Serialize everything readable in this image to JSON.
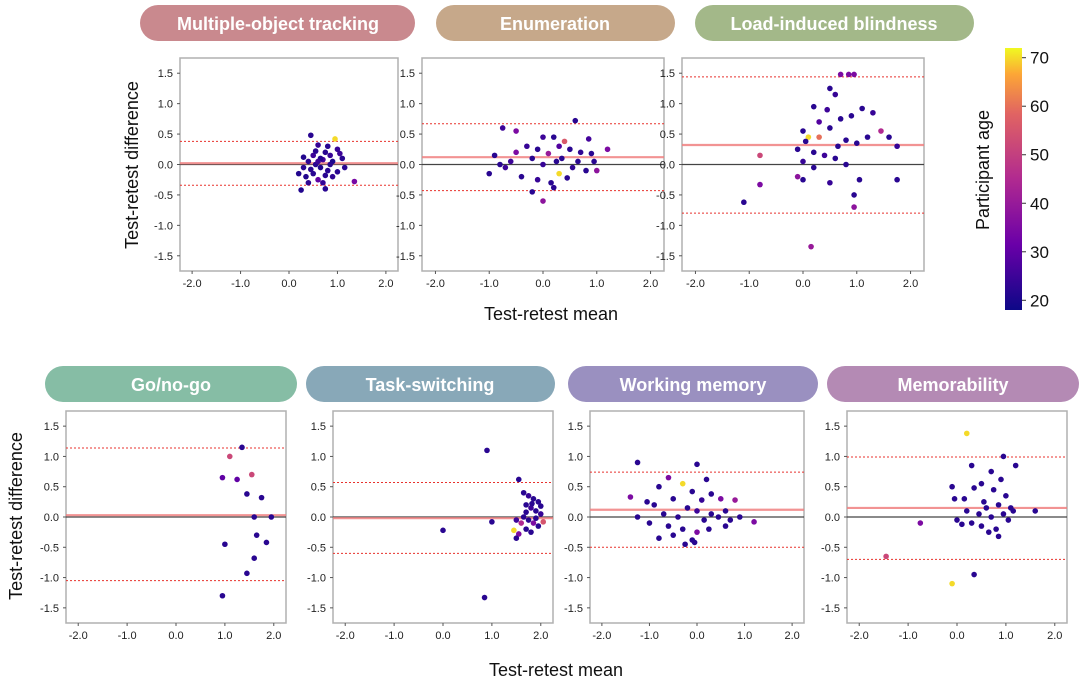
{
  "figure": {
    "row1_xlabel": "Test-retest mean",
    "row2_xlabel": "Test-retest mean",
    "ylabel": "Test-retest difference",
    "colorbar": {
      "label": "Participant age",
      "min": 18,
      "max": 72,
      "ticks": [
        "20",
        "30",
        "40",
        "50",
        "60",
        "70"
      ],
      "tick_values": [
        20,
        30,
        40,
        50,
        60,
        70
      ]
    }
  },
  "chart_data": [
    {
      "type": "scatter",
      "title": "Multiple-object tracking",
      "title_color": "#c9898e",
      "xlim": [
        -2.25,
        2.25
      ],
      "ylim": [
        -1.75,
        1.75
      ],
      "xticks": [
        "-2.0",
        "-1.0",
        "0.0",
        "1.0",
        "2.0"
      ],
      "yticks": [
        "1.5",
        "1.0",
        "0.5",
        "0.0",
        "-0.5",
        "-1.0",
        "-1.5"
      ],
      "mean_diff": 0.02,
      "loa_upper": 0.38,
      "loa_lower": -0.34,
      "points": [
        [
          0.45,
          0.48,
          22
        ],
        [
          0.6,
          0.32,
          24
        ],
        [
          0.95,
          0.42,
          70
        ],
        [
          0.75,
          0.2,
          22
        ],
        [
          0.5,
          0.15,
          25
        ],
        [
          0.3,
          0.12,
          21
        ],
        [
          0.4,
          0.05,
          23
        ],
        [
          0.55,
          0.0,
          22
        ],
        [
          0.65,
          -0.05,
          21
        ],
        [
          0.7,
          0.08,
          26
        ],
        [
          0.8,
          -0.1,
          22
        ],
        [
          0.85,
          0.15,
          24
        ],
        [
          0.9,
          0.05,
          20
        ],
        [
          1.0,
          -0.12,
          22
        ],
        [
          1.05,
          0.18,
          25
        ],
        [
          0.35,
          -0.2,
          21
        ],
        [
          0.5,
          -0.15,
          22
        ],
        [
          0.6,
          -0.25,
          30
        ],
        [
          0.7,
          -0.3,
          24
        ],
        [
          0.75,
          -0.4,
          22
        ],
        [
          0.25,
          -0.42,
          21
        ],
        [
          0.4,
          -0.3,
          23
        ],
        [
          1.1,
          0.1,
          22
        ],
        [
          1.0,
          0.25,
          24
        ],
        [
          1.35,
          -0.28,
          34
        ],
        [
          0.85,
          0.0,
          22
        ],
        [
          0.55,
          0.22,
          22
        ],
        [
          0.65,
          0.1,
          21
        ],
        [
          0.9,
          -0.2,
          23
        ],
        [
          0.3,
          -0.05,
          22
        ],
        [
          0.45,
          -0.08,
          22
        ],
        [
          0.6,
          0.05,
          25
        ],
        [
          0.75,
          -0.18,
          22
        ],
        [
          0.2,
          -0.15,
          21
        ],
        [
          1.15,
          -0.05,
          22
        ],
        [
          0.8,
          0.3,
          22
        ]
      ]
    },
    {
      "type": "scatter",
      "title": "Enumeration",
      "title_color": "#c6a88a",
      "xlim": [
        -2.25,
        2.25
      ],
      "ylim": [
        -1.75,
        1.75
      ],
      "xticks": [
        "-2.0",
        "-1.0",
        "0.0",
        "1.0",
        "2.0"
      ],
      "yticks": [
        "1.5",
        "1.0",
        "0.5",
        "0.0",
        "-0.5",
        "-1.0",
        "-1.5"
      ],
      "mean_diff": 0.12,
      "loa_upper": 0.67,
      "loa_lower": -0.43,
      "points": [
        [
          -0.75,
          0.6,
          25
        ],
        [
          -0.5,
          0.55,
          35
        ],
        [
          0.6,
          0.72,
          22
        ],
        [
          0.0,
          0.45,
          25
        ],
        [
          0.2,
          0.45,
          22
        ],
        [
          0.4,
          0.38,
          56
        ],
        [
          0.85,
          0.42,
          26
        ],
        [
          -0.3,
          0.3,
          24
        ],
        [
          -0.1,
          0.25,
          22
        ],
        [
          0.1,
          0.18,
          40
        ],
        [
          0.3,
          0.3,
          28
        ],
        [
          0.5,
          0.25,
          22
        ],
        [
          0.7,
          0.2,
          23
        ],
        [
          0.9,
          0.18,
          22
        ],
        [
          1.2,
          0.25,
          35
        ],
        [
          -0.9,
          0.15,
          22
        ],
        [
          -0.6,
          0.05,
          25
        ],
        [
          -0.2,
          0.1,
          22
        ],
        [
          0.0,
          0.0,
          24
        ],
        [
          0.25,
          0.05,
          22
        ],
        [
          0.55,
          -0.05,
          23
        ],
        [
          0.8,
          -0.1,
          22
        ],
        [
          1.0,
          -0.1,
          38
        ],
        [
          -1.0,
          -0.15,
          22
        ],
        [
          -0.7,
          -0.05,
          25
        ],
        [
          -0.4,
          -0.2,
          22
        ],
        [
          -0.1,
          -0.25,
          24
        ],
        [
          0.15,
          -0.3,
          22
        ],
        [
          0.3,
          -0.15,
          70
        ],
        [
          0.45,
          -0.22,
          22
        ],
        [
          -0.2,
          -0.45,
          22
        ],
        [
          0.0,
          -0.6,
          38
        ],
        [
          0.2,
          -0.38,
          22
        ],
        [
          -0.5,
          0.2,
          35
        ],
        [
          0.65,
          0.05,
          22
        ],
        [
          0.95,
          0.05,
          22
        ],
        [
          -0.8,
          0.0,
          22
        ],
        [
          0.35,
          0.1,
          22
        ]
      ]
    },
    {
      "type": "scatter",
      "title": "Load-induced blindness",
      "title_color": "#a3b889",
      "xlim": [
        -2.25,
        2.25
      ],
      "ylim": [
        -1.75,
        1.75
      ],
      "xticks": [
        "-2.0",
        "-1.0",
        "0.0",
        "1.0",
        "2.0"
      ],
      "yticks": [
        "1.5",
        "1.0",
        "0.5",
        "0.0",
        "-0.5",
        "-1.0",
        "-1.5"
      ],
      "mean_diff": 0.32,
      "loa_upper": 1.44,
      "loa_lower": -0.8,
      "points": [
        [
          0.7,
          1.48,
          35
        ],
        [
          0.85,
          1.48,
          35
        ],
        [
          0.95,
          1.48,
          35
        ],
        [
          0.5,
          1.25,
          22
        ],
        [
          0.6,
          1.15,
          24
        ],
        [
          0.2,
          0.95,
          22
        ],
        [
          0.45,
          0.9,
          25
        ],
        [
          1.1,
          0.92,
          22
        ],
        [
          1.3,
          0.85,
          24
        ],
        [
          0.9,
          0.8,
          22
        ],
        [
          0.3,
          0.7,
          28
        ],
        [
          0.7,
          0.75,
          22
        ],
        [
          0.0,
          0.55,
          22
        ],
        [
          0.5,
          0.6,
          22
        ],
        [
          1.45,
          0.55,
          45
        ],
        [
          0.1,
          0.45,
          70
        ],
        [
          0.3,
          0.45,
          60
        ],
        [
          0.8,
          0.4,
          22
        ],
        [
          1.0,
          0.35,
          22
        ],
        [
          1.2,
          0.45,
          22
        ],
        [
          1.6,
          0.45,
          22
        ],
        [
          1.75,
          0.3,
          24
        ],
        [
          -0.1,
          0.25,
          22
        ],
        [
          0.2,
          0.2,
          22
        ],
        [
          0.4,
          0.15,
          25
        ],
        [
          0.6,
          0.1,
          22
        ],
        [
          0.8,
          0.0,
          22
        ],
        [
          0.0,
          0.05,
          24
        ],
        [
          -0.8,
          0.15,
          52
        ],
        [
          -0.8,
          -0.33,
          35
        ],
        [
          -0.1,
          -0.2,
          38
        ],
        [
          0.0,
          -0.25,
          22
        ],
        [
          0.2,
          -0.05,
          22
        ],
        [
          0.5,
          -0.3,
          24
        ],
        [
          1.05,
          -0.25,
          22
        ],
        [
          1.75,
          -0.25,
          22
        ],
        [
          -1.1,
          -0.62,
          22
        ],
        [
          0.95,
          -0.5,
          22
        ],
        [
          0.95,
          -0.7,
          38
        ],
        [
          0.15,
          -1.35,
          40
        ],
        [
          0.05,
          0.38,
          22
        ],
        [
          0.65,
          0.3,
          22
        ]
      ]
    },
    {
      "type": "scatter",
      "title": "Go/no-go",
      "title_color": "#86bda5",
      "xlim": [
        -2.25,
        2.25
      ],
      "ylim": [
        -1.75,
        1.75
      ],
      "xticks": [
        "-2.0",
        "-1.0",
        "0.0",
        "1.0",
        "2.0"
      ],
      "yticks": [
        "1.5",
        "1.0",
        "0.5",
        "0.0",
        "-0.5",
        "-1.0",
        "-1.5"
      ],
      "mean_diff": 0.03,
      "loa_upper": 1.14,
      "loa_lower": -1.05,
      "points": [
        [
          1.35,
          1.15,
          22
        ],
        [
          1.1,
          1.0,
          52
        ],
        [
          1.55,
          0.7,
          52
        ],
        [
          0.95,
          0.65,
          30
        ],
        [
          1.25,
          0.62,
          30
        ],
        [
          1.45,
          0.38,
          22
        ],
        [
          1.75,
          0.32,
          22
        ],
        [
          1.6,
          0.0,
          22
        ],
        [
          1.95,
          0.0,
          22
        ],
        [
          1.65,
          -0.3,
          22
        ],
        [
          1.85,
          -0.42,
          22
        ],
        [
          1.0,
          -0.45,
          22
        ],
        [
          1.6,
          -0.68,
          22
        ],
        [
          1.45,
          -0.93,
          22
        ],
        [
          0.95,
          -1.3,
          22
        ]
      ]
    },
    {
      "type": "scatter",
      "title": "Task-switching",
      "title_color": "#88a8b8",
      "xlim": [
        -2.25,
        2.25
      ],
      "ylim": [
        -1.75,
        1.75
      ],
      "xticks": [
        "-2.0",
        "-1.0",
        "0.0",
        "1.0",
        "2.0"
      ],
      "yticks": [
        "1.5",
        "1.0",
        "0.5",
        "0.0",
        "-0.5",
        "-1.0",
        "-1.5"
      ],
      "mean_diff": -0.02,
      "loa_upper": 0.57,
      "loa_lower": -0.6,
      "points": [
        [
          0.9,
          1.1,
          22
        ],
        [
          1.55,
          0.62,
          22
        ],
        [
          1.65,
          0.4,
          22
        ],
        [
          1.75,
          0.35,
          24
        ],
        [
          1.85,
          0.3,
          22
        ],
        [
          1.95,
          0.25,
          22
        ],
        [
          1.7,
          0.2,
          22
        ],
        [
          1.8,
          0.15,
          25
        ],
        [
          1.9,
          0.1,
          22
        ],
        [
          2.0,
          0.05,
          24
        ],
        [
          1.65,
          0.0,
          22
        ],
        [
          1.75,
          -0.05,
          22
        ],
        [
          1.85,
          -0.1,
          35
        ],
        [
          1.95,
          -0.15,
          22
        ],
        [
          1.7,
          -0.2,
          22
        ],
        [
          1.8,
          -0.25,
          22
        ],
        [
          1.6,
          -0.1,
          45
        ],
        [
          1.5,
          -0.05,
          25
        ],
        [
          1.55,
          -0.28,
          35
        ],
        [
          1.45,
          -0.22,
          70
        ],
        [
          1.5,
          -0.35,
          22
        ],
        [
          1.0,
          -0.08,
          22
        ],
        [
          0.0,
          -0.22,
          22
        ],
        [
          0.85,
          -1.33,
          22
        ],
        [
          2.0,
          0.18,
          22
        ],
        [
          1.9,
          -0.02,
          22
        ],
        [
          2.05,
          -0.08,
          55
        ],
        [
          1.7,
          0.08,
          22
        ],
        [
          1.82,
          0.22,
          22
        ]
      ]
    },
    {
      "type": "scatter",
      "title": "Working memory",
      "title_color": "#9a90c0",
      "xlim": [
        -2.25,
        2.25
      ],
      "ylim": [
        -1.75,
        1.75
      ],
      "xticks": [
        "-2.0",
        "-1.0",
        "0.0",
        "1.0",
        "2.0"
      ],
      "yticks": [
        "1.5",
        "1.0",
        "0.5",
        "0.0",
        "-0.5",
        "-1.0",
        "-1.5"
      ],
      "mean_diff": 0.12,
      "loa_upper": 0.74,
      "loa_lower": -0.5,
      "points": [
        [
          -1.25,
          0.9,
          22
        ],
        [
          0.0,
          0.87,
          22
        ],
        [
          -0.6,
          0.65,
          35
        ],
        [
          0.2,
          0.62,
          22
        ],
        [
          -0.3,
          0.55,
          70
        ],
        [
          -0.8,
          0.5,
          22
        ],
        [
          -0.1,
          0.42,
          22
        ],
        [
          0.3,
          0.38,
          22
        ],
        [
          -1.4,
          0.33,
          35
        ],
        [
          -0.5,
          0.3,
          22
        ],
        [
          0.1,
          0.28,
          24
        ],
        [
          0.5,
          0.3,
          35
        ],
        [
          0.8,
          0.28,
          40
        ],
        [
          -0.9,
          0.2,
          22
        ],
        [
          -0.2,
          0.15,
          22
        ],
        [
          0.0,
          0.1,
          25
        ],
        [
          0.3,
          0.05,
          22
        ],
        [
          0.6,
          0.1,
          22
        ],
        [
          -0.7,
          0.05,
          22
        ],
        [
          -0.4,
          0.0,
          22
        ],
        [
          0.15,
          -0.05,
          22
        ],
        [
          0.45,
          0.0,
          22
        ],
        [
          0.7,
          -0.05,
          22
        ],
        [
          0.9,
          0.0,
          22
        ],
        [
          -1.0,
          -0.1,
          22
        ],
        [
          -1.25,
          0.0,
          22
        ],
        [
          -0.6,
          -0.15,
          22
        ],
        [
          -0.3,
          -0.2,
          22
        ],
        [
          0.0,
          -0.25,
          35
        ],
        [
          0.25,
          -0.2,
          22
        ],
        [
          -0.5,
          -0.3,
          22
        ],
        [
          -0.8,
          -0.35,
          22
        ],
        [
          -0.1,
          -0.38,
          22
        ],
        [
          -0.25,
          -0.45,
          22
        ],
        [
          -0.05,
          -0.42,
          22
        ],
        [
          1.2,
          -0.08,
          35
        ],
        [
          0.6,
          -0.15,
          22
        ],
        [
          -1.05,
          0.25,
          22
        ]
      ]
    },
    {
      "type": "scatter",
      "title": "Memorability",
      "title_color": "#b48ab4",
      "xlim": [
        -2.25,
        2.25
      ],
      "ylim": [
        -1.75,
        1.75
      ],
      "xticks": [
        "-2.0",
        "-1.0",
        "0.0",
        "1.0",
        "2.0"
      ],
      "yticks": [
        "1.5",
        "1.0",
        "0.5",
        "0.0",
        "-0.5",
        "-1.0",
        "-1.5"
      ],
      "mean_diff": 0.15,
      "loa_upper": 0.99,
      "loa_lower": -0.7,
      "points": [
        [
          0.2,
          1.38,
          70
        ],
        [
          0.95,
          1.0,
          22
        ],
        [
          1.2,
          0.85,
          22
        ],
        [
          0.3,
          0.85,
          22
        ],
        [
          0.7,
          0.75,
          22
        ],
        [
          0.9,
          0.62,
          22
        ],
        [
          0.5,
          0.55,
          22
        ],
        [
          -0.1,
          0.5,
          22
        ],
        [
          0.35,
          0.48,
          22
        ],
        [
          0.75,
          0.45,
          22
        ],
        [
          1.0,
          0.35,
          22
        ],
        [
          0.15,
          0.3,
          22
        ],
        [
          -0.05,
          0.3,
          22
        ],
        [
          0.55,
          0.25,
          22
        ],
        [
          0.85,
          0.2,
          22
        ],
        [
          1.1,
          0.15,
          22
        ],
        [
          0.6,
          0.15,
          22
        ],
        [
          0.2,
          0.1,
          22
        ],
        [
          0.45,
          0.05,
          22
        ],
        [
          0.7,
          0.0,
          22
        ],
        [
          0.95,
          0.05,
          22
        ],
        [
          1.15,
          0.1,
          22
        ],
        [
          1.6,
          0.1,
          22
        ],
        [
          0.0,
          -0.05,
          22
        ],
        [
          0.3,
          -0.1,
          22
        ],
        [
          0.5,
          -0.15,
          22
        ],
        [
          0.8,
          -0.2,
          22
        ],
        [
          0.1,
          -0.12,
          22
        ],
        [
          0.65,
          -0.25,
          22
        ],
        [
          0.85,
          -0.32,
          22
        ],
        [
          -0.75,
          -0.1,
          35
        ],
        [
          -1.45,
          -0.65,
          52
        ],
        [
          -0.1,
          -1.1,
          70
        ],
        [
          0.35,
          -0.95,
          22
        ],
        [
          1.05,
          -0.05,
          22
        ]
      ]
    }
  ]
}
